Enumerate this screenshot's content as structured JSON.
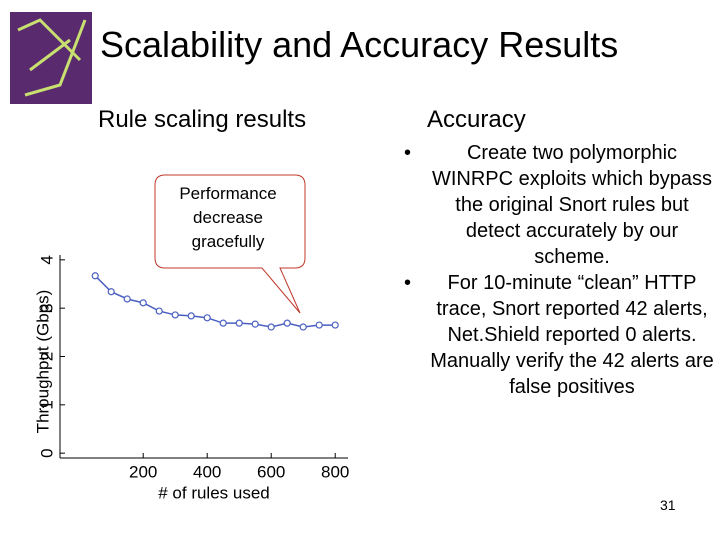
{
  "title": "Scalability and Accuracy Results",
  "left_heading": "Rule scaling results",
  "right_heading": "Accuracy",
  "bullets": [
    "Create two polymorphic WINRPC exploits which bypass the original Snort rules but detect accurately by our scheme.",
    "For 10-minute “clean” HTTP trace, Snort reported 42 alerts, Net.Shield reported 0 alerts. Manually verify the 42 alerts are false positives"
  ],
  "callout": "Performance decrease gracefully",
  "page_number": "31",
  "chart_data": {
    "type": "line",
    "xlabel": "# of rules used",
    "ylabel": "Throughput (Gbps)",
    "x": [
      50,
      100,
      150,
      200,
      250,
      300,
      350,
      400,
      450,
      500,
      550,
      600,
      650,
      700,
      750,
      800
    ],
    "series": [
      {
        "color": "#4a5fc1",
        "values": [
          3.67,
          3.34,
          3.19,
          3.11,
          2.94,
          2.86,
          2.84,
          2.8,
          2.69,
          2.69,
          2.67,
          2.61,
          2.69,
          2.61,
          2.65,
          2.65
        ]
      }
    ],
    "xlim": [
      -60,
      840
    ],
    "ylim": [
      -0.1,
      4.1
    ],
    "xticks": [
      200,
      400,
      600,
      800
    ],
    "yticks": [
      0,
      1,
      2,
      3,
      4
    ]
  }
}
